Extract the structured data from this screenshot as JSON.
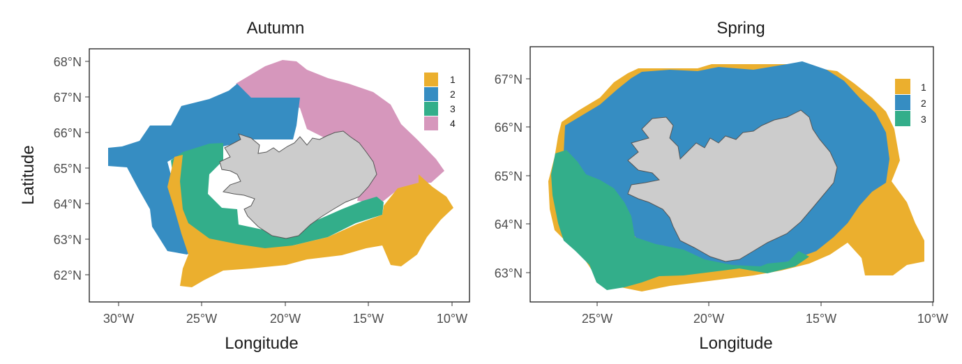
{
  "figure": {
    "panels": [
      {
        "title": "Autumn",
        "xlabel": "Longitude",
        "ylabel": "Latitude",
        "x_ticks": [
          "30°W",
          "25°W",
          "20°W",
          "15°W",
          "10°W"
        ],
        "y_ticks": [
          "68°N",
          "67°N",
          "66°N",
          "65°N",
          "64°N",
          "63°N",
          "62°N"
        ],
        "legend": [
          {
            "label": "1",
            "color": "#EBAF2E"
          },
          {
            "label": "2",
            "color": "#368DC2"
          },
          {
            "label": "3",
            "color": "#33AE8A"
          },
          {
            "label": "4",
            "color": "#D697BC"
          }
        ]
      },
      {
        "title": "Spring",
        "xlabel": "Longitude",
        "ylabel": "",
        "x_ticks": [
          "25°W",
          "20°W",
          "15°W",
          "10°W"
        ],
        "y_ticks": [
          "67°N",
          "66°N",
          "65°N",
          "64°N",
          "63°N"
        ],
        "legend": [
          {
            "label": "1",
            "color": "#EBAF2E"
          },
          {
            "label": "2",
            "color": "#368DC2"
          },
          {
            "label": "3",
            "color": "#33AE8A"
          }
        ]
      }
    ],
    "land_color": "#CCCCCC"
  },
  "chart_data": [
    {
      "type": "map",
      "title": "Autumn",
      "xlabel": "Longitude",
      "ylabel": "Latitude",
      "xlim": [
        -31,
        -9.5
      ],
      "ylim": [
        61.6,
        68.3
      ],
      "clusters": [
        "1",
        "2",
        "3",
        "4"
      ],
      "regions": [
        {
          "cluster": "4",
          "extent": "north and east of Iceland, ~66-68°N, 12-23°W"
        },
        {
          "cluster": "2",
          "extent": "west and northwest of Iceland, ~62.5-67°N, 20-31°W"
        },
        {
          "cluster": "3",
          "extent": "southwest shelf of Iceland, ~63-65.5°N, 15-27°W"
        },
        {
          "cluster": "1",
          "extent": "south and southeast of Iceland, ~62-64.5°N, 10-27°W"
        }
      ]
    },
    {
      "type": "map",
      "title": "Spring",
      "xlabel": "Longitude",
      "ylabel": "",
      "xlim": [
        -28,
        -9.5
      ],
      "ylim": [
        62.6,
        67.5
      ],
      "clusters": [
        "1",
        "2",
        "3"
      ],
      "regions": [
        {
          "cluster": "2",
          "extent": "ring around Iceland, ~63.5-67.4°N, 11-27°W"
        },
        {
          "cluster": "3",
          "extent": "southwest of Iceland, ~62.7-65°N, 17-27°W"
        },
        {
          "cluster": "1",
          "extent": "outer margin and southeast, ~62.7-67.2°N, 10.5-27°W"
        }
      ]
    }
  ]
}
